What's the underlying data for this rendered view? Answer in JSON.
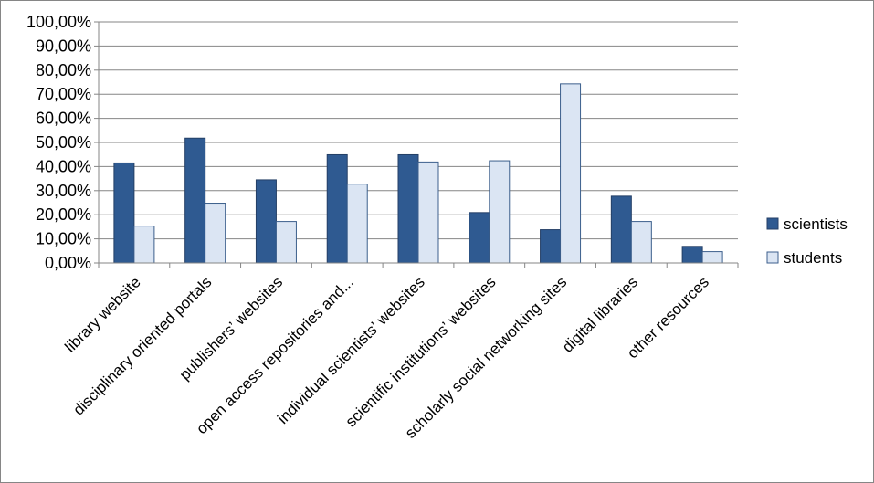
{
  "chart_data": {
    "type": "bar",
    "categories": [
      "library website",
      "disciplinary oriented portals",
      "publishers’ websites",
      "open access repositories and...",
      "individual scientists’ websites",
      "scientific institutions’ websites",
      "scholarly social networking sites",
      "digital libraries",
      "other resources"
    ],
    "series": [
      {
        "name": "scientists",
        "color": "#2f5a91",
        "values": [
          41.5,
          51.8,
          34.5,
          44.9,
          44.9,
          20.9,
          13.8,
          27.7,
          6.9
        ]
      },
      {
        "name": "students",
        "color": "#dbe5f3",
        "values": [
          15.3,
          24.8,
          17.2,
          32.7,
          41.9,
          42.4,
          74.3,
          17.2,
          4.7
        ]
      }
    ],
    "y_ticks": [
      "0,00%",
      "10,00%",
      "20,00%",
      "30,00%",
      "40,00%",
      "50,00%",
      "60,00%",
      "70,00%",
      "80,00%",
      "90,00%",
      "100,00%"
    ],
    "ylim": [
      0,
      100
    ],
    "grid": true,
    "legend_position": "right",
    "title": "",
    "xlabel": "",
    "ylabel": ""
  }
}
